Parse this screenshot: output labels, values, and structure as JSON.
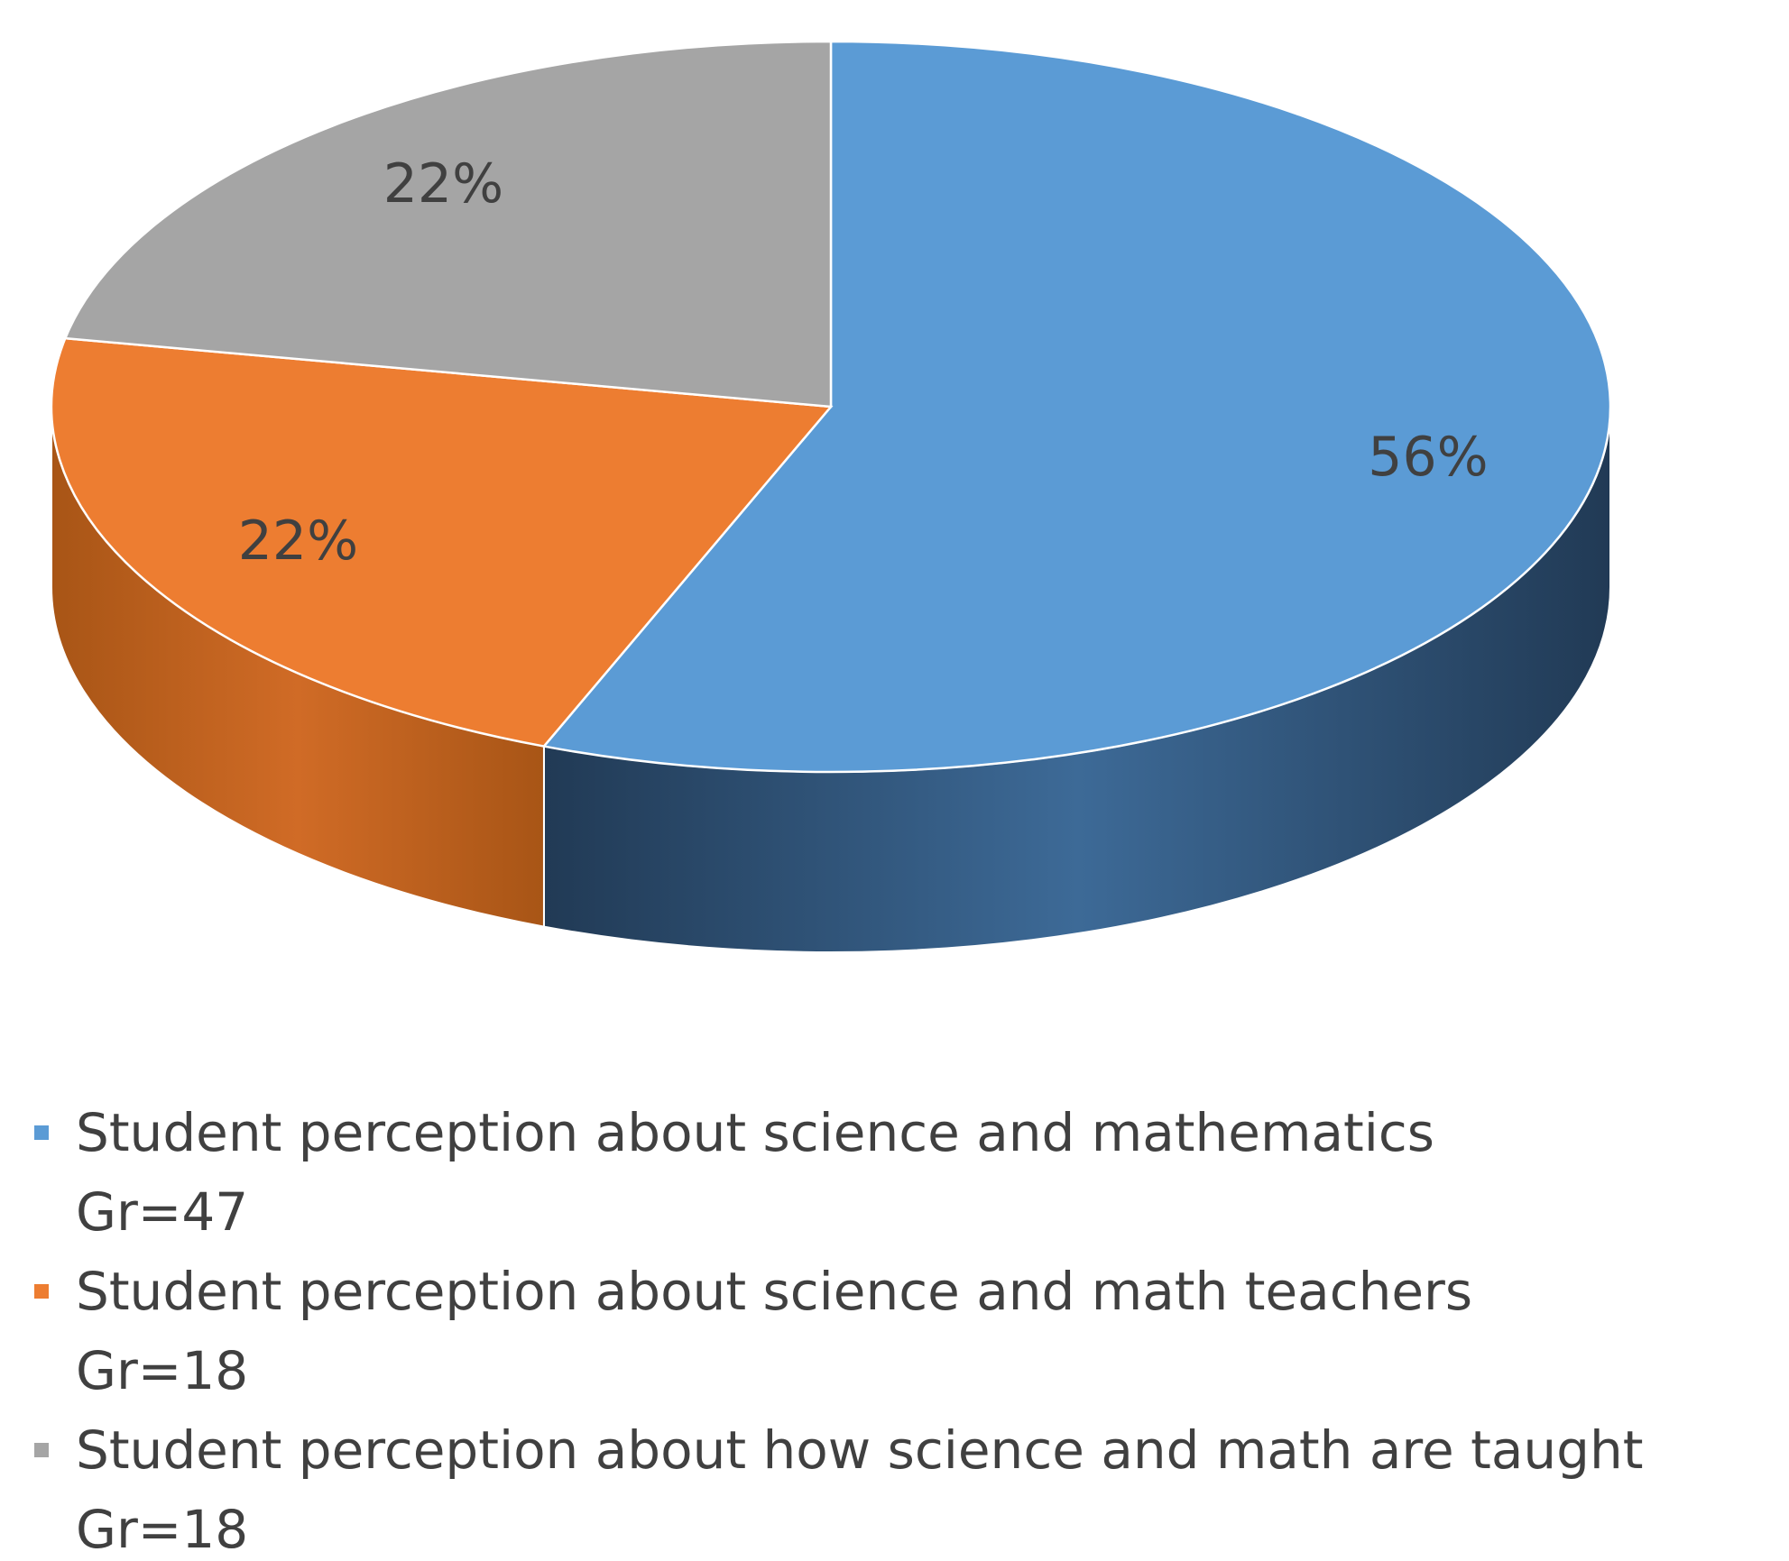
{
  "chart_data": {
    "type": "pie",
    "categories": [
      "Student perception about science and mathematics\nGr=47",
      "Student perception about science and math teachers\nGr=18",
      "Student perception about how science and math are taught\nGr=18"
    ],
    "values": [
      56,
      22,
      22
    ],
    "value_labels": [
      "56%",
      "22%",
      "22%"
    ],
    "colors": [
      "#5b9bd5",
      "#ed7d31",
      "#a5a5a5"
    ],
    "side_colors": [
      [
        "#3d6a97",
        "#213a55"
      ],
      [
        "#d06b26",
        "#a85516"
      ],
      [
        "#8a8a8a",
        "#6e6e6e"
      ]
    ]
  }
}
